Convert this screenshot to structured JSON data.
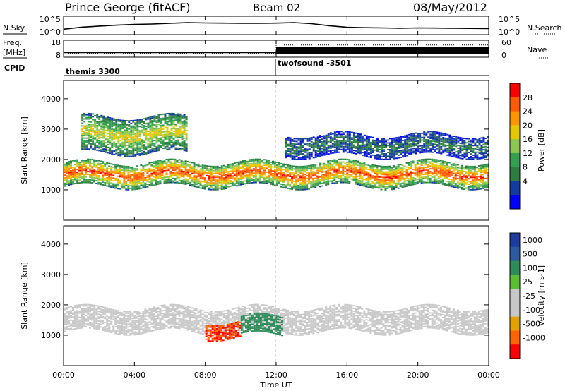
{
  "header": {
    "station": "Prince George (fitACF)",
    "beam": "Beam 02",
    "date": "08/May/2012"
  },
  "chart_data": [
    {
      "type": "line",
      "panel": "noise",
      "left_label": "N.Sky",
      "right_label": "N.Search",
      "left_ticks": [
        "10^5",
        "10^0"
      ],
      "right_ticks": [
        "10^5",
        "10^0"
      ],
      "y_scale": "log",
      "ylim": [
        1,
        100000
      ],
      "series": [
        {
          "values_hours": [
            0,
            1,
            2,
            3,
            4,
            5,
            6,
            7,
            8,
            9,
            10,
            11,
            12,
            13,
            14,
            15,
            16,
            17,
            18,
            19,
            20,
            21,
            22,
            23,
            24
          ],
          "values": [
            20,
            80,
            200,
            400,
            700,
            900,
            1500,
            2500,
            2000,
            1800,
            1500,
            1500,
            1800,
            2500,
            1200,
            250,
            80,
            60,
            50,
            40,
            50,
            45,
            40,
            35,
            30
          ]
        }
      ]
    },
    {
      "type": "line",
      "panel": "frequency",
      "left_label": "Freq.",
      "left_unit": "[MHz]",
      "left_ticks": [
        "18",
        "8"
      ],
      "right_label": "Nave",
      "right_ticks": [
        "60",
        "0"
      ],
      "freq_ylim": [
        8,
        18
      ],
      "nave_ylim": [
        0,
        60
      ],
      "series": [
        {
          "x_hours": [
            0,
            12,
            12,
            24
          ],
          "values": [
            10.2,
            10.2,
            11.6,
            11.6
          ]
        },
        {
          "x_hours": [
            0,
            12,
            12,
            24
          ],
          "values": [
            10,
            10,
            46,
            46
          ]
        }
      ]
    },
    {
      "type": "table",
      "panel": "cpid",
      "label": "CPID",
      "segments": [
        {
          "name": "themis 3300",
          "start_hour": 0,
          "end_hour": 12
        },
        {
          "name": "twofsound -3501",
          "start_hour": 12,
          "end_hour": 24
        }
      ]
    },
    {
      "type": "heatmap",
      "panel": "power",
      "ylabel": "Slant Range [km]",
      "yticks": [
        1000,
        2000,
        3000,
        4000
      ],
      "ylim": [
        0,
        4600
      ],
      "xlim_hours": [
        0,
        24
      ],
      "colorbar": {
        "label": "Power [dB]",
        "ticks": [
          "28",
          "24",
          "20",
          "16",
          "12",
          "8",
          "4"
        ]
      },
      "features": [
        {
          "band": "main echo",
          "start_hour": 0,
          "end_hour": 24,
          "range_km": [
            1100,
            1900
          ],
          "peak_power_db": 30
        },
        {
          "band": "far range",
          "start_hour": 1,
          "end_hour": 7,
          "range_km": [
            2200,
            3400
          ],
          "peak_power_db": 20
        },
        {
          "band": "far range",
          "start_hour": 12.5,
          "end_hour": 24,
          "range_km": [
            2100,
            2800
          ],
          "peak_power_db": 8
        }
      ]
    },
    {
      "type": "heatmap",
      "panel": "velocity",
      "ylabel": "Slant Range [km]",
      "yticks": [
        1000,
        2000,
        3000,
        4000
      ],
      "ylim": [
        0,
        4600
      ],
      "xlim_hours": [
        0,
        24
      ],
      "colorbar": {
        "label": "Velocity [m s-1]",
        "ticks": [
          "1000",
          "500",
          "100",
          "25",
          "-25",
          "-100",
          "-500",
          "-1000"
        ]
      },
      "features": [
        {
          "band": "ground scatter",
          "start_hour": 0,
          "end_hour": 24,
          "range_km": [
            1100,
            1900
          ],
          "velocity_ms": 0
        },
        {
          "band": "westward flow",
          "start_hour": 8,
          "end_hour": 10,
          "range_km": [
            900,
            1400
          ],
          "velocity_ms": -700
        },
        {
          "band": "eastward flow",
          "start_hour": 10,
          "end_hour": 12.3,
          "range_km": [
            1000,
            1600
          ],
          "velocity_ms": 250
        }
      ]
    }
  ],
  "x_axis": {
    "ticks": [
      "00:00",
      "04:00",
      "08:00",
      "12:00",
      "16:00",
      "20:00",
      "00:00"
    ],
    "label": "Time UT"
  },
  "colors": {
    "power_scale": [
      "#ff0000",
      "#ff5a00",
      "#ff9600",
      "#e6c800",
      "#8cc850",
      "#32a050",
      "#2d7d41",
      "#143ca0",
      "#0000ff"
    ],
    "velocity_scale": [
      "#1e3ca0",
      "#2d5aa0",
      "#2d8c5a",
      "#5abe32",
      "#c8c8c8",
      "#c8c8c8",
      "#e6a000",
      "#ff6400",
      "#ff0000"
    ]
  }
}
